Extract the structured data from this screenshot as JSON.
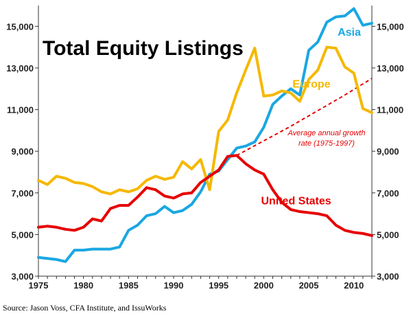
{
  "chart_data": {
    "type": "line",
    "title": "Total Equity Listings",
    "source": "Source: Jason Voss, CFA Institute, and IssuWorks",
    "x": [
      1975,
      1976,
      1977,
      1978,
      1979,
      1980,
      1981,
      1982,
      1983,
      1984,
      1985,
      1986,
      1987,
      1988,
      1989,
      1990,
      1991,
      1992,
      1993,
      1994,
      1995,
      1996,
      1997,
      1998,
      1999,
      2000,
      2001,
      2002,
      2003,
      2004,
      2005,
      2006,
      2007,
      2008,
      2009,
      2010,
      2011,
      2012
    ],
    "xlim": [
      1975,
      2012
    ],
    "ylim": [
      3000,
      16000
    ],
    "x_ticks": [
      "1975",
      "1980",
      "1985",
      "1990",
      "1995",
      "2000",
      "2005",
      "2010"
    ],
    "y_ticks": [
      "3,000",
      "5,000",
      "7,000",
      "9,000",
      "11,000",
      "13,000",
      "15,000"
    ],
    "y_tick_values": [
      3000,
      5000,
      7000,
      9000,
      11000,
      13000,
      15000
    ],
    "x_tick_values": [
      1975,
      1980,
      1985,
      1990,
      1995,
      2000,
      2005,
      2010
    ],
    "grid": false,
    "series": [
      {
        "name": "Asia",
        "color": "#1aa7e2",
        "values": [
          3900,
          3850,
          3800,
          3700,
          4250,
          4250,
          4300,
          4300,
          4300,
          4400,
          5200,
          5450,
          5900,
          6000,
          6350,
          6050,
          6150,
          6450,
          7050,
          7900,
          8050,
          8600,
          9150,
          9250,
          9450,
          10150,
          11250,
          11650,
          12000,
          11700,
          13850,
          14250,
          15200,
          15450,
          15500,
          15850,
          15050,
          15150
        ],
        "label_pos": [
          2008.2,
          14550
        ]
      },
      {
        "name": "Europe",
        "color": "#f5b800",
        "values": [
          7600,
          7400,
          7800,
          7700,
          7500,
          7450,
          7300,
          7050,
          6950,
          7150,
          7050,
          7200,
          7600,
          7800,
          7650,
          7750,
          8500,
          8150,
          8600,
          7150,
          9950,
          10500,
          11800,
          12900,
          13950,
          11650,
          11700,
          11900,
          11800,
          11400,
          12450,
          12900,
          14000,
          13950,
          13050,
          12750,
          11050,
          10850
        ],
        "label_pos": [
          2003.2,
          12050
        ]
      },
      {
        "name": "United States",
        "color": "#e60000",
        "values": [
          5350,
          5400,
          5350,
          5250,
          5200,
          5350,
          5750,
          5650,
          6250,
          6400,
          6400,
          6800,
          7250,
          7150,
          6850,
          6750,
          6950,
          7000,
          7500,
          7800,
          8100,
          8750,
          8800,
          8400,
          8100,
          7900,
          7150,
          6550,
          6200,
          6100,
          6050,
          6000,
          5900,
          5450,
          5200,
          5100,
          5050,
          4950
        ],
        "label_pos": [
          1999.7,
          6450
        ]
      }
    ],
    "trend": {
      "label_line1": "Average annual growth",
      "label_line2": "rate (1975-1997)",
      "color": "#e60000",
      "x": [
        1997,
        2000,
        2003,
        2006,
        2009,
        2012
      ],
      "values": [
        8800,
        9500,
        10200,
        10950,
        11700,
        12500
      ]
    }
  }
}
